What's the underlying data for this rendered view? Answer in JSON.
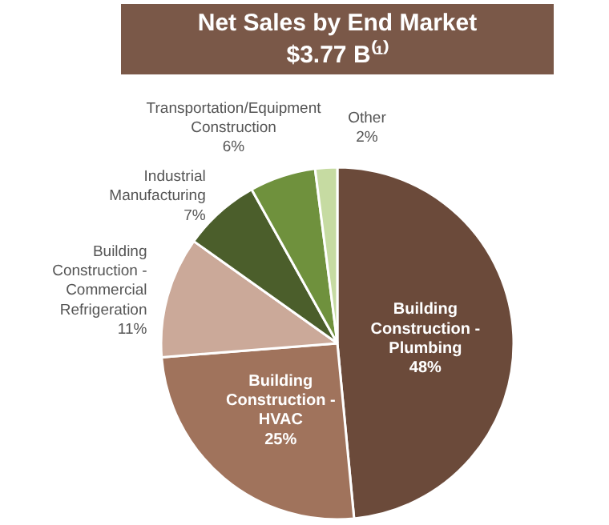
{
  "chart_data": {
    "type": "pie",
    "title": "Net Sales by End Market",
    "subtitle": "$3.77 B⁽¹⁾",
    "categories": [
      "Building Construction - Plumbing",
      "Building Construction - HVAC",
      "Building Construction - Commercial Refrigeration",
      "Industrial Manufacturing",
      "Transportation/Equipment Construction",
      "Other"
    ],
    "values": [
      48,
      25,
      11,
      7,
      6,
      2
    ],
    "colors": [
      "#6b4a3a",
      "#a0735c",
      "#cba999",
      "#4b5e2b",
      "#6f913d",
      "#c6dba2"
    ],
    "value_labels": [
      "48%",
      "25%",
      "11%",
      "7%",
      "6%",
      "2%"
    ]
  }
}
